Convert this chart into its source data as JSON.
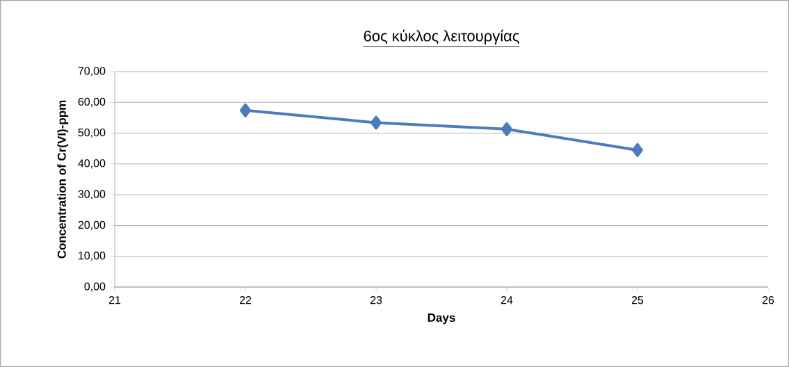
{
  "chart_data": {
    "type": "line",
    "title": "6ος κύκλος λειτουργίας",
    "xlabel": "Days",
    "ylabel": "Concentration of Cr(VI)-ppm",
    "x": [
      22,
      23,
      24,
      25
    ],
    "series": [
      {
        "color": "#4a7ebb",
        "values": [
          57.4,
          53.4,
          51.3,
          44.5
        ]
      }
    ],
    "xlim": [
      21,
      26
    ],
    "xticks": [
      21,
      22,
      23,
      24,
      25,
      26
    ],
    "ylim": [
      0,
      70
    ],
    "yticks": [
      {
        "value": 0,
        "label": "0,00"
      },
      {
        "value": 10,
        "label": "10,00"
      },
      {
        "value": 20,
        "label": "20,00"
      },
      {
        "value": 30,
        "label": "30,00"
      },
      {
        "value": 40,
        "label": "40,00"
      },
      {
        "value": 50,
        "label": "50,00"
      },
      {
        "value": 60,
        "label": "60,00"
      },
      {
        "value": 70,
        "label": "70,00"
      }
    ],
    "grid": "y",
    "marker": "diamond",
    "line_style": "solid"
  }
}
